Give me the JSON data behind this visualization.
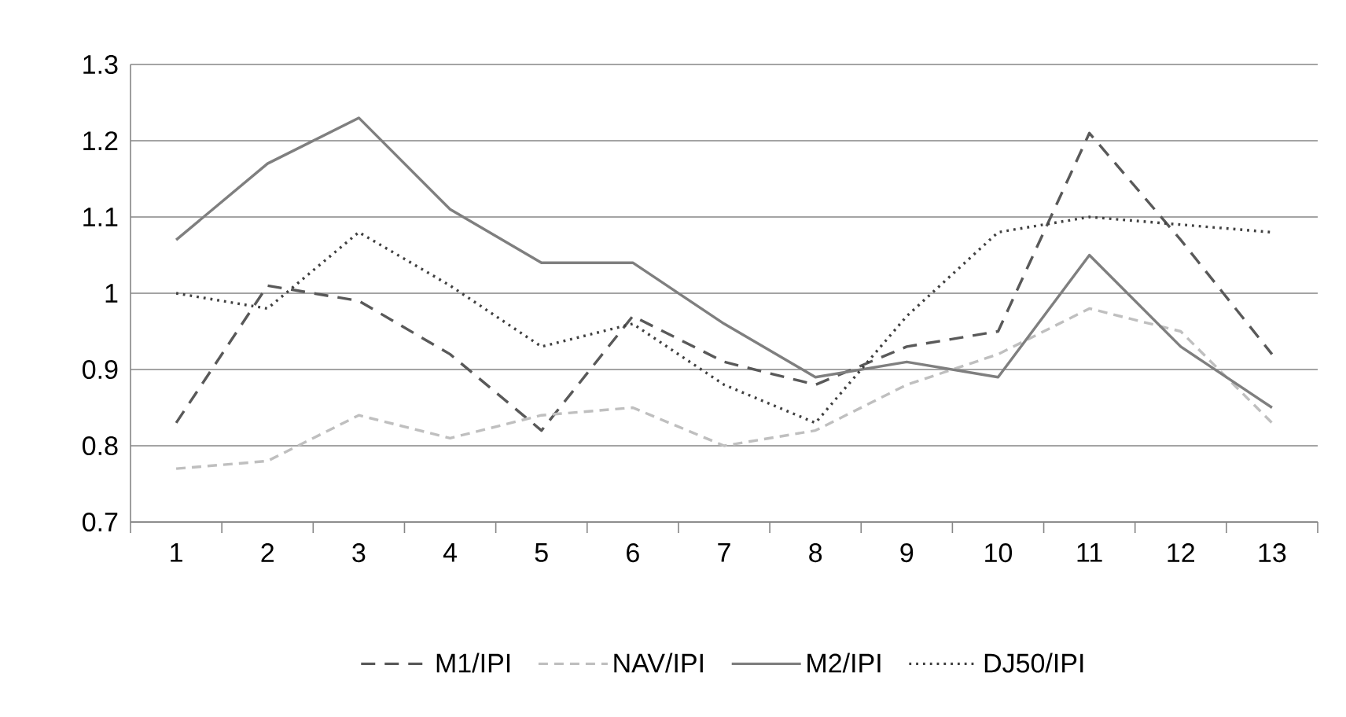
{
  "chart_data": {
    "type": "line",
    "categories": [
      "1",
      "2",
      "3",
      "4",
      "5",
      "6",
      "7",
      "8",
      "9",
      "10",
      "11",
      "12",
      "13"
    ],
    "series": [
      {
        "name": "M1/IPI",
        "color": "#595959",
        "line_style": "dashed",
        "values": [
          0.83,
          1.01,
          0.99,
          0.92,
          0.82,
          0.97,
          0.91,
          0.88,
          0.93,
          0.95,
          1.21,
          1.07,
          0.92
        ]
      },
      {
        "name": "NAV/IPI",
        "color": "#bfbfbf",
        "line_style": "dashed",
        "values": [
          0.77,
          0.78,
          0.84,
          0.81,
          0.84,
          0.85,
          0.8,
          0.82,
          0.88,
          0.92,
          0.98,
          0.95,
          0.83
        ]
      },
      {
        "name": "M2/IPI",
        "color": "#7f7f7f",
        "line_style": "solid",
        "values": [
          1.07,
          1.17,
          1.23,
          1.11,
          1.04,
          1.04,
          0.96,
          0.89,
          0.91,
          0.89,
          1.05,
          0.93,
          0.85
        ]
      },
      {
        "name": "DJ50/IPI",
        "color": "#404040",
        "line_style": "dotted",
        "values": [
          1.0,
          0.98,
          1.08,
          1.01,
          0.93,
          0.96,
          0.88,
          0.83,
          0.97,
          1.08,
          1.1,
          1.09,
          1.08
        ]
      }
    ],
    "ylim": [
      0.7,
      1.3
    ],
    "yticks": [
      0.7,
      0.8,
      0.9,
      1,
      1.1,
      1.2,
      1.3
    ],
    "grid": "y",
    "legend": "bottom",
    "marker": "none"
  }
}
